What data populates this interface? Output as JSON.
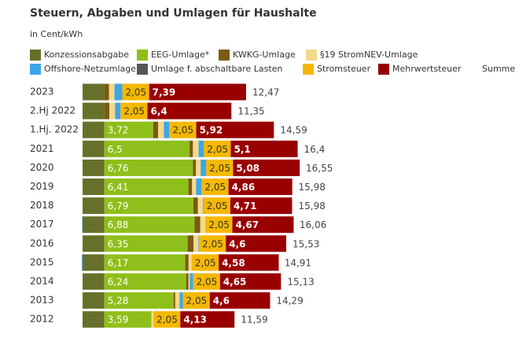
{
  "chart_data": {
    "type": "stacked-bar-horizontal",
    "title": "Steuern, Abgaben und Umlagen für Haushalte",
    "subtitle": "in Cent/kWh",
    "categories": [
      "2023",
      "2.Hj 2022",
      "1.Hj. 2022",
      "2021",
      "2020",
      "2019",
      "2018",
      "2017",
      "2016",
      "2015",
      "2014",
      "2013",
      "2012"
    ],
    "series": [
      {
        "name": "Konzessionsabgabe",
        "color": "#67702a",
        "values": [
          1.66,
          1.66,
          1.66,
          1.66,
          1.66,
          1.66,
          1.66,
          1.66,
          1.66,
          1.66,
          1.66,
          1.66,
          1.66
        ]
      },
      {
        "name": "EEG-Umlage*",
        "color": "#8fbf1a",
        "values": [
          0,
          0,
          3.72,
          6.5,
          6.76,
          6.41,
          6.79,
          6.88,
          6.35,
          6.17,
          6.24,
          5.28,
          3.59
        ],
        "value_labels": [
          null,
          null,
          "3,72",
          "6,5",
          "6,76",
          "6,41",
          "6,79",
          "6,88",
          "6,35",
          "6,17",
          "6,24",
          "5,28",
          "3,59"
        ]
      },
      {
        "name": "KWKG-Umlage",
        "color": "#7a5a10",
        "values": [
          0.357,
          0.378,
          0.378,
          0.254,
          0.226,
          0.28,
          0.345,
          0.438,
          0.445,
          0.254,
          0.178,
          0.126,
          0.002
        ]
      },
      {
        "name": "§19 StromNEV-Umlage",
        "color": "#f5d98a",
        "values": [
          0.417,
          0.437,
          0.437,
          0.432,
          0.358,
          0.305,
          0.37,
          0.388,
          0.378,
          0.237,
          0.092,
          0.329,
          0.151
        ]
      },
      {
        "name": "Offshore-Netzumlage",
        "color": "#3ea6e8",
        "values": [
          0.591,
          0.419,
          0.419,
          0.395,
          0.416,
          0.416,
          0.037,
          -0.028,
          0.04,
          -0.051,
          0.25,
          0.25,
          0
        ]
      },
      {
        "name": "Umlage f. abschaltbare Lasten",
        "color": "#555555",
        "values": [
          0,
          0.003,
          0.003,
          0.009,
          0.007,
          0.005,
          0.011,
          0.006,
          0,
          0.006,
          0.009,
          0,
          0
        ]
      },
      {
        "name": "Stromsteuer",
        "color": "#f5b800",
        "values": [
          2.05,
          2.05,
          2.05,
          2.05,
          2.05,
          2.05,
          2.05,
          2.05,
          2.05,
          2.05,
          2.05,
          2.05,
          2.05
        ],
        "value_labels": [
          "2,05",
          "2,05",
          "2,05",
          "2,05",
          "2,05",
          "2,05",
          "2,05",
          "2,05",
          "2,05",
          "2,05",
          "2,05",
          "2,05",
          "2,05"
        ]
      },
      {
        "name": "Mehrwertsteuer",
        "color": "#990000",
        "values": [
          7.39,
          6.4,
          5.92,
          5.1,
          5.08,
          4.86,
          4.71,
          4.67,
          4.6,
          4.58,
          4.65,
          4.6,
          4.13
        ],
        "value_labels": [
          "7,39",
          "6,4",
          "5,92",
          "5,1",
          "5,08",
          "4,86",
          "4,71",
          "4,67",
          "4,6",
          "4,58",
          "4,65",
          "4,6",
          "4,13"
        ]
      }
    ],
    "totals": {
      "name": "Summe",
      "values": [
        12.47,
        11.35,
        14.59,
        16.4,
        16.55,
        15.98,
        15.98,
        16.06,
        15.53,
        14.91,
        15.13,
        14.29,
        11.59
      ],
      "value_labels": [
        "12,47",
        "11,35",
        "14,59",
        "16,4",
        "16,55",
        "15,98",
        "15,98",
        "16,06",
        "15,53",
        "14,91",
        "15,13",
        "14,29",
        "11,59"
      ]
    }
  }
}
